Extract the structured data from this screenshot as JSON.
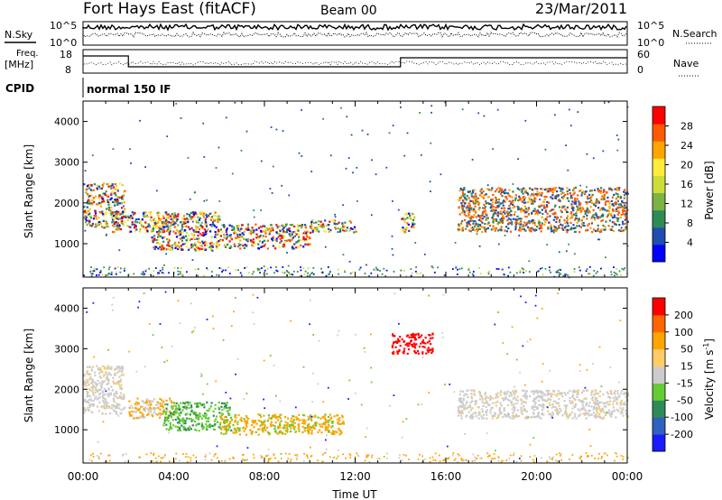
{
  "header": {
    "title": "Fort Hays East (fitACF)",
    "beam": "Beam 00",
    "date": "23/Mar/2011"
  },
  "status_panel": {
    "nsky_label": "N.Sky",
    "nsearch_label": "N.Search",
    "noise_ticks_left": [
      "10^5",
      "10^0"
    ],
    "noise_ticks_right": [
      "10^5",
      "10^0"
    ],
    "freq_label_line1": "Freq.",
    "freq_label_line2": "[MHz]",
    "freq_ticks": [
      "18",
      "8"
    ],
    "nave_label": "Nave",
    "nave_ticks": [
      "60",
      "0"
    ],
    "cpid_label": "CPID",
    "cpid_value": "normal 150 IF"
  },
  "chart_data": [
    {
      "type": "heatmap",
      "name": "power",
      "ylabel": "Slant Range [km]",
      "xlabel": "Time UT",
      "x_ticks": [
        "00:00",
        "04:00",
        "08:00",
        "12:00",
        "16:00",
        "20:00",
        "00:00"
      ],
      "y_ticks": [
        "4000",
        "3000",
        "2000",
        "1000"
      ],
      "xlim_hours": [
        0,
        24
      ],
      "ylim_km": [
        180,
        4500
      ],
      "colorbar": {
        "label": "Power [dB]",
        "ticks": [
          "28",
          "24",
          "20",
          "16",
          "12",
          "8",
          "4"
        ],
        "colors": [
          "#0000ff",
          "#1f4db0",
          "#2e8b57",
          "#7cb342",
          "#cddc39",
          "#ffeb3b",
          "#ffa500",
          "#ff5a00",
          "#ff0000"
        ]
      },
      "echo_bands": [
        {
          "t": [
            0.0,
            1.8
          ],
          "range_km": [
            1400,
            2500
          ],
          "note": "rising band"
        },
        {
          "t": [
            1.2,
            4.0
          ],
          "range_km": [
            1300,
            1800
          ]
        },
        {
          "t": [
            3.0,
            6.0
          ],
          "range_km": [
            850,
            1800
          ]
        },
        {
          "t": [
            6.0,
            10.0
          ],
          "range_km": [
            900,
            1500
          ]
        },
        {
          "t": [
            10.0,
            12.0
          ],
          "range_km": [
            1300,
            1600
          ]
        },
        {
          "t": [
            14.0,
            14.6
          ],
          "range_km": [
            1300,
            1800
          ]
        },
        {
          "t": [
            16.5,
            24.0
          ],
          "range_km": [
            1300,
            2400
          ],
          "note": "dense band near 1600 km"
        }
      ]
    },
    {
      "type": "heatmap",
      "name": "velocity",
      "ylabel": "Slant Range [km]",
      "xlabel": "Time UT",
      "x_ticks": [
        "00:00",
        "04:00",
        "08:00",
        "12:00",
        "16:00",
        "20:00",
        "00:00"
      ],
      "y_ticks": [
        "4000",
        "3000",
        "2000",
        "1000"
      ],
      "xlim_hours": [
        0,
        24
      ],
      "ylim_km": [
        180,
        4500
      ],
      "colorbar": {
        "label": "Velocity [m s-1]",
        "label_main": "Velocity [m s",
        "label_exp": "-1",
        "label_close": "]",
        "ticks": [
          "200",
          "100",
          "50",
          "15",
          "-15",
          "-50",
          "-100",
          "-200"
        ],
        "colors": [
          "#1a1aff",
          "#3060c0",
          "#2e8b57",
          "#66cc33",
          "#cccccc",
          "#ffcc66",
          "#ffa500",
          "#ff6600",
          "#ff0000"
        ]
      },
      "echo_bands": [
        {
          "t": [
            0.0,
            1.8
          ],
          "range_km": [
            1400,
            2600
          ],
          "color": "grey"
        },
        {
          "t": [
            2.0,
            4.0
          ],
          "range_km": [
            1300,
            1800
          ],
          "color": "orange/grey"
        },
        {
          "t": [
            3.5,
            6.5
          ],
          "range_km": [
            1000,
            1700
          ],
          "color": "green"
        },
        {
          "t": [
            6.0,
            11.5
          ],
          "range_km": [
            900,
            1400
          ],
          "color": "orange"
        },
        {
          "t": [
            13.6,
            15.4
          ],
          "range_km": [
            2900,
            3400
          ],
          "color": "red"
        },
        {
          "t": [
            16.5,
            24.0
          ],
          "range_km": [
            1300,
            2000
          ],
          "color": "grey"
        }
      ]
    }
  ]
}
